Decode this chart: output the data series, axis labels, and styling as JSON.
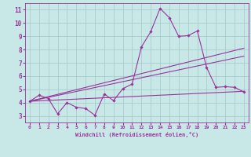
{
  "xlabel": "Windchill (Refroidissement éolien,°C)",
  "ylabel": "",
  "background_color": "#c8e8e8",
  "grid_color": "#a8cccc",
  "line_color": "#993399",
  "xlim": [
    -0.5,
    23.5
  ],
  "ylim": [
    2.5,
    11.5
  ],
  "yticks": [
    3,
    4,
    5,
    6,
    7,
    8,
    9,
    10,
    11
  ],
  "xticks": [
    0,
    1,
    2,
    3,
    4,
    5,
    6,
    7,
    8,
    9,
    10,
    11,
    12,
    13,
    14,
    15,
    16,
    17,
    18,
    19,
    20,
    21,
    22,
    23
  ],
  "series1_x": [
    0,
    1,
    2,
    3,
    4,
    5,
    6,
    7,
    8,
    9,
    10,
    11,
    12,
    13,
    14,
    15,
    16,
    17,
    18,
    19,
    20,
    21,
    22,
    23
  ],
  "series1_y": [
    4.1,
    4.55,
    4.3,
    3.15,
    4.0,
    3.65,
    3.55,
    3.05,
    4.65,
    4.15,
    5.05,
    5.4,
    8.2,
    9.35,
    11.1,
    10.4,
    9.0,
    9.05,
    9.4,
    6.65,
    5.15,
    5.2,
    5.15,
    4.8
  ],
  "trend1_x": [
    0,
    23
  ],
  "trend1_y": [
    4.1,
    4.85
  ],
  "trend2_x": [
    0,
    23
  ],
  "trend2_y": [
    4.1,
    8.1
  ],
  "trend3_x": [
    0,
    23
  ],
  "trend3_y": [
    4.1,
    7.5
  ]
}
